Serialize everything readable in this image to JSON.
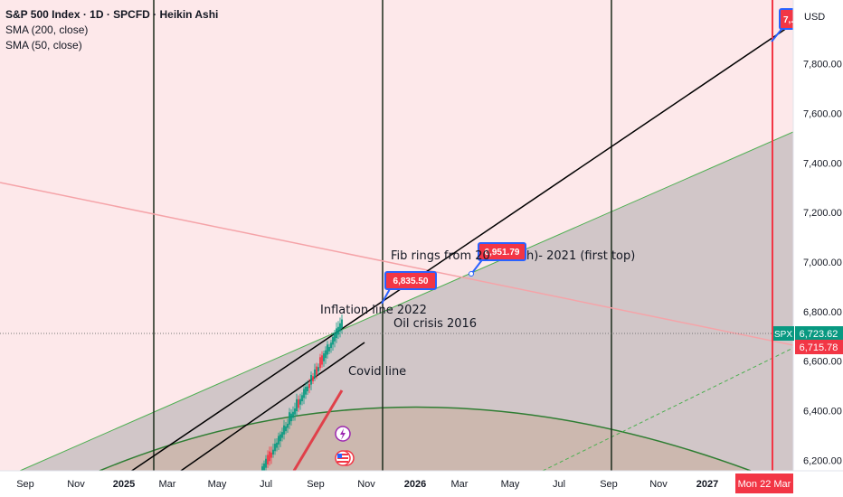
{
  "header": {
    "title": "S&P 500 Index · 1D · SPCFD · Heikin Ashi",
    "indicators": [
      "SMA (200, close)",
      "SMA (50, close)"
    ]
  },
  "chart_data": {
    "type": "candlestick",
    "currency": "USD",
    "y_axis": {
      "ticks": [
        6200,
        6400,
        6600,
        6800,
        7000,
        7200,
        7400,
        7600,
        7800
      ],
      "tick_labels": [
        "6,200.00",
        "6,400.00",
        "6,600.00",
        "6,800.00",
        "7,000.00",
        "7,200.00",
        "7,400.00",
        "7,600.00",
        "7,800.00"
      ]
    },
    "x_axis": {
      "labels": [
        "Sep",
        "Nov",
        "2025",
        "Mar",
        "May",
        "Jul",
        "Sep",
        "Nov",
        "2026",
        "Mar",
        "May",
        "Jul",
        "Sep",
        "Nov",
        "2027"
      ],
      "bold_labels": [
        "2025",
        "2026",
        "2027"
      ],
      "cursor_label": "Mon 22 Mar"
    },
    "price_tags": [
      {
        "label": "SPX",
        "value": "6,723.62",
        "color": "#089981"
      },
      {
        "value": "6,715.78",
        "color": "#f23645"
      }
    ],
    "callouts": [
      {
        "value": "6,835.50"
      },
      {
        "value": "6,951.79"
      },
      {
        "value": "7,..."
      }
    ],
    "annotations": [
      "Fib rings from 20",
      "h)- 2021 (first top)",
      "Inflation line 2022",
      "Oil crisis 2016",
      "Covid line"
    ],
    "colors": {
      "up": "#089981",
      "down": "#f23645",
      "fib_fill": "#c9bfc2",
      "background_zone": "#fde8ea",
      "trend_line": "#000000",
      "sma_200": "#f5a3a8",
      "sma_50": "#f23645"
    }
  }
}
